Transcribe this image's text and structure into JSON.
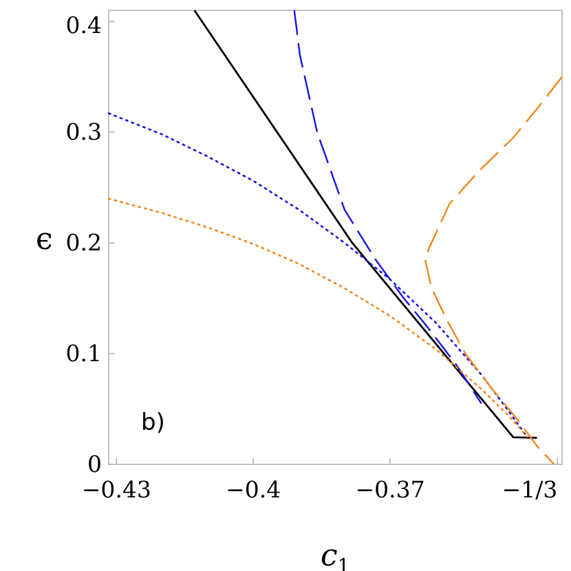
{
  "chart_data": {
    "type": "line",
    "panel_label": "b)",
    "xlabel": "c",
    "xlabel_subscript": "1",
    "ylabel": "ϵ",
    "xlim": [
      -0.4317,
      -0.3323
    ],
    "ylim": [
      0,
      0.41
    ],
    "x_ticks": [
      {
        "value": -0.43,
        "label": "−0.43"
      },
      {
        "value": -0.4,
        "label": "−0.4"
      },
      {
        "value": -0.37,
        "label": "−0.37"
      },
      {
        "value": -0.33333,
        "label": "−1/3"
      }
    ],
    "y_ticks": [
      {
        "value": 0.0,
        "label": "0"
      },
      {
        "value": 0.1,
        "label": "0.1"
      },
      {
        "value": 0.2,
        "label": "0.2"
      },
      {
        "value": 0.3,
        "label": "0.3"
      },
      {
        "value": 0.4,
        "label": "0.4"
      }
    ],
    "grid": false,
    "colors": {
      "black": "#000000",
      "blue": "#1515e6",
      "orange": "#f2871c"
    },
    "series": [
      {
        "style": "solid",
        "color": "black",
        "x": [
          -0.4129,
          -0.3783,
          -0.343,
          -0.3378
        ],
        "y": [
          0.41,
          0.2,
          0.0245,
          0.024
        ]
      },
      {
        "style": "dashed",
        "color": "blue",
        "x": [
          -0.391,
          -0.3898,
          -0.386,
          -0.38,
          -0.3732,
          -0.367,
          -0.362,
          -0.3555,
          -0.35
        ],
        "y": [
          0.41,
          0.37,
          0.3,
          0.23,
          0.185,
          0.15,
          0.125,
          0.09,
          0.055
        ]
      },
      {
        "style": "dotted",
        "color": "blue",
        "x": [
          -0.4317,
          -0.42,
          -0.41,
          -0.4,
          -0.39,
          -0.38,
          -0.37,
          -0.36,
          -0.35,
          -0.344,
          -0.34
        ],
        "y": [
          0.317,
          0.298,
          0.278,
          0.256,
          0.23,
          0.2,
          0.167,
          0.128,
          0.081,
          0.048,
          0.025
        ]
      },
      {
        "style": "dotted",
        "color": "orange",
        "x": [
          -0.4317,
          -0.42,
          -0.41,
          -0.4,
          -0.39,
          -0.38,
          -0.37,
          -0.36,
          -0.35,
          -0.344,
          -0.34
        ],
        "y": [
          0.24,
          0.227,
          0.214,
          0.199,
          0.181,
          0.159,
          0.134,
          0.104,
          0.068,
          0.044,
          0.025
        ]
      },
      {
        "style": "dashed",
        "color": "orange",
        "x": [
          -0.3323,
          -0.337,
          -0.343,
          -0.3505,
          -0.357,
          -0.3615,
          -0.3623,
          -0.361,
          -0.3575,
          -0.3535,
          -0.348,
          -0.342,
          -0.3375,
          -0.334
        ],
        "y": [
          0.35,
          0.325,
          0.295,
          0.265,
          0.235,
          0.195,
          0.185,
          0.16,
          0.13,
          0.1,
          0.07,
          0.04,
          0.015,
          0.0
        ]
      }
    ]
  }
}
